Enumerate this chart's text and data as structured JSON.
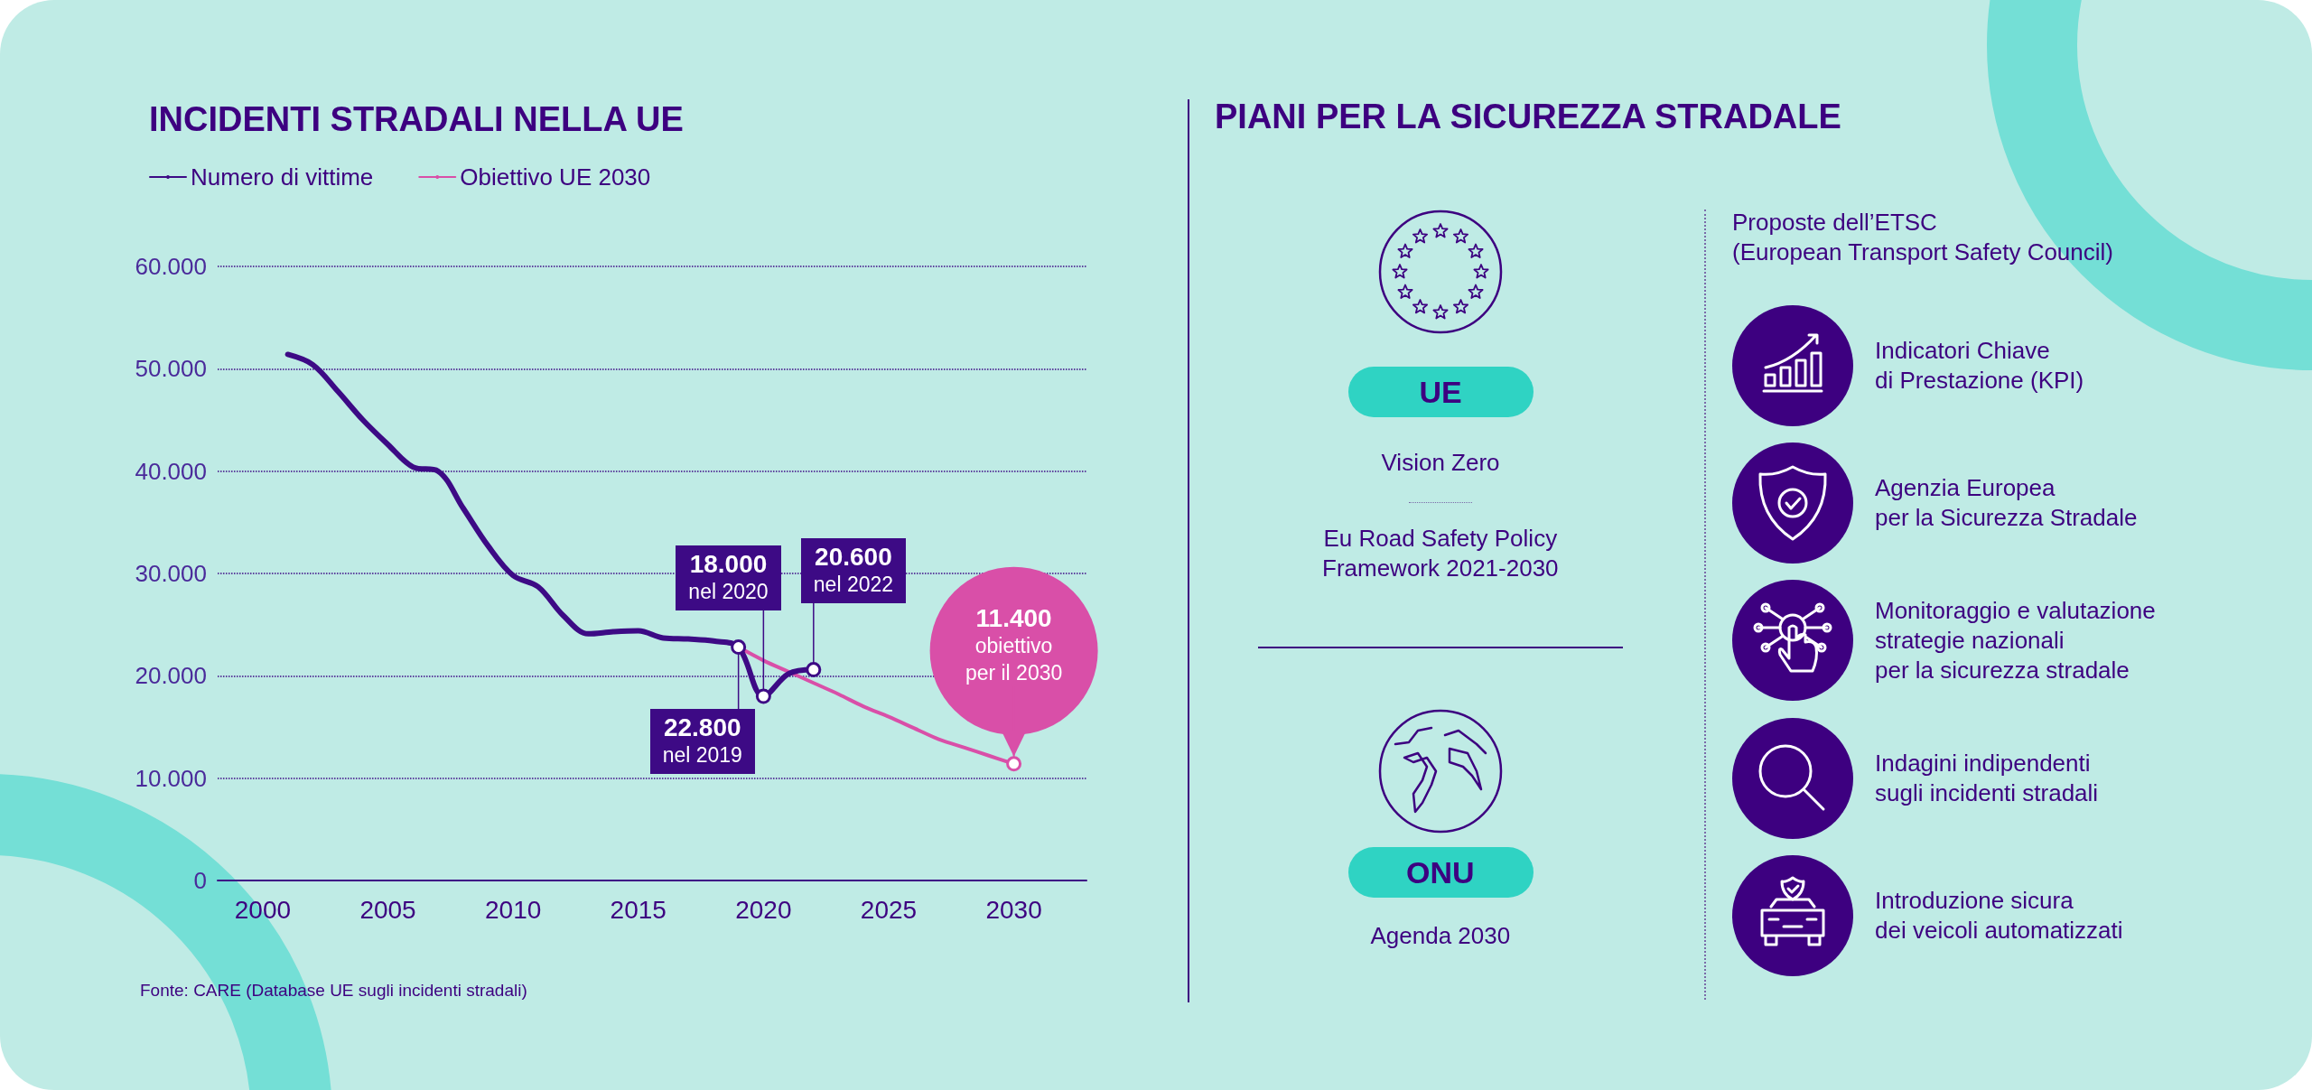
{
  "chart_data": [
    {
      "type": "line",
      "title": "INCIDENTI STRADALI NELLA UE",
      "series": [
        {
          "name": "Numero di vittime",
          "color": "#3d0a85",
          "x": [
            2001,
            2002,
            2003,
            2004,
            2005,
            2006,
            2007,
            2008,
            2009,
            2010,
            2011,
            2012,
            2013,
            2014,
            2015,
            2016,
            2017,
            2018,
            2019,
            2020,
            2021,
            2022
          ],
          "values": [
            51400,
            50400,
            47800,
            45000,
            42600,
            40400,
            40000,
            36400,
            32700,
            29800,
            28700,
            25900,
            24100,
            24300,
            24400,
            23700,
            23600,
            23400,
            22800,
            18000,
            20200,
            20600
          ]
        },
        {
          "name": "Obiettivo UE 2030",
          "color": "#d94fa8",
          "x": [
            2019,
            2020,
            2021,
            2022,
            2023,
            2024,
            2025,
            2026,
            2027,
            2028,
            2029,
            2030
          ],
          "values": [
            22800,
            21500,
            20400,
            19300,
            18200,
            17000,
            16000,
            14900,
            13800,
            13000,
            12200,
            11400
          ]
        }
      ],
      "xlim": [
        1998.2,
        2032.9
      ],
      "xticks": [
        2000,
        2005,
        2010,
        2015,
        2020,
        2025,
        2030
      ],
      "ylim": [
        0,
        60000
      ],
      "yticks": [
        0,
        {
          "value": 10000,
          "label": "10.000"
        },
        {
          "value": 20000,
          "label": "20.000"
        },
        {
          "value": 30000,
          "label": "30.000"
        },
        {
          "value": 40000,
          "label": "40.000"
        },
        {
          "value": 50000,
          "label": "50.000"
        },
        {
          "value": 60000,
          "label": "60.000"
        }
      ],
      "grid": "y",
      "legend": "top left",
      "marker": "none",
      "line_style": "solid",
      "annotations": [
        {
          "text": "22.800\nnel 2019",
          "x": 2019,
          "y": 22800
        },
        {
          "text": "18.000\nnel 2020",
          "x": 2020,
          "y": 18000
        },
        {
          "text": "20.600\nnel 2022",
          "x": 2022,
          "y": 20600
        },
        {
          "text": "11.400\nobiettivo\nper il 2030",
          "x": 2030,
          "y": 11400
        },
        "Fonte: CARE (Database UE sugli incidenti stradali)"
      ]
    },
    {
      "type": "other",
      "title": "PIANI PER LA SICUREZZA STRADALE",
      "annotations": [
        "UE",
        "Vision Zero",
        "Eu Road Safety Policy\nFramework 2021-2030",
        "ONU",
        "Agenda 2030",
        "Proposte dell’ETSC\n(European Transport Safety Council)",
        "Indicatori Chiave\ndi Prestazione (KPI)",
        "Agenzia Europea\nper la Sicurezza Stradale",
        "Monitoraggio e valutazione\nstrategie nazionali\nper la sicurezza stradale",
        "Indagini indipendenti\nsugli incidenti stradali",
        "Introduzione sicura\ndei veicoli automatizzati"
      ]
    }
  ]
}
